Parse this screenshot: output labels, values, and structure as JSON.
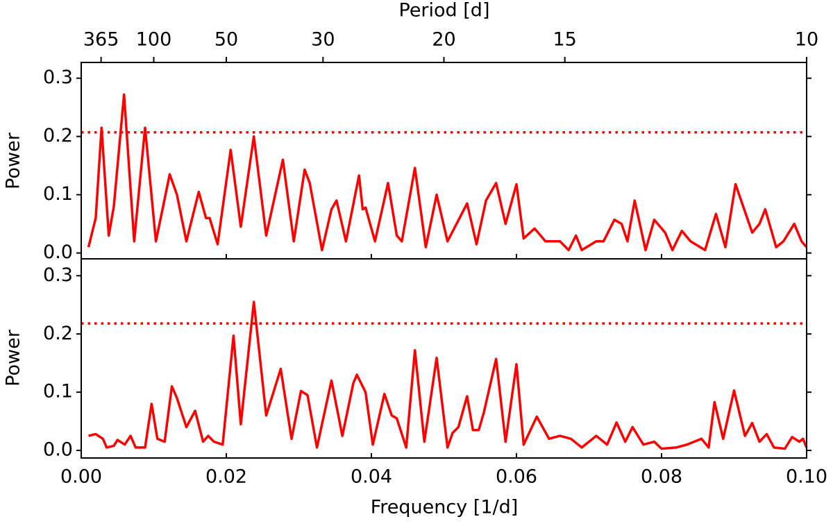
{
  "chart_data": [
    {
      "type": "line",
      "y_label": "Power",
      "x2_label": "Period [d]",
      "x2ticks": [
        365,
        100,
        50,
        30,
        20,
        15,
        10
      ],
      "xlim": [
        0,
        0.1
      ],
      "ylim": [
        -0.01,
        0.327
      ],
      "yticks": [
        {
          "value": 0,
          "label": "0.0"
        },
        {
          "value": 0.1,
          "label": "0.1"
        },
        {
          "value": 0.2,
          "label": "0.2"
        },
        {
          "value": 0.3,
          "label": "0.3"
        }
      ],
      "threshold": 0.207,
      "color": "#ff0000",
      "x": [
        0.001,
        0.002,
        0.0028,
        0.0038,
        0.0045,
        0.0059,
        0.0073,
        0.0088,
        0.0103,
        0.0122,
        0.0132,
        0.0145,
        0.0162,
        0.0172,
        0.0177,
        0.0188,
        0.0206,
        0.022,
        0.0238,
        0.0255,
        0.0278,
        0.0293,
        0.0308,
        0.0315,
        0.0332,
        0.0345,
        0.0352,
        0.0365,
        0.0383,
        0.0388,
        0.0392,
        0.0405,
        0.0423,
        0.0435,
        0.0442,
        0.046,
        0.0475,
        0.049,
        0.0505,
        0.0532,
        0.0545,
        0.0558,
        0.0572,
        0.0585,
        0.06,
        0.061,
        0.0625,
        0.064,
        0.066,
        0.0672,
        0.0682,
        0.069,
        0.071,
        0.072,
        0.0735,
        0.0745,
        0.0753,
        0.0763,
        0.0778,
        0.079,
        0.0805,
        0.0815,
        0.0828,
        0.084,
        0.086,
        0.0875,
        0.0888,
        0.0902,
        0.0925,
        0.0935,
        0.0943,
        0.0958,
        0.0968,
        0.0983,
        0.0993,
        0.1
      ],
      "values": [
        0.01,
        0.06,
        0.215,
        0.03,
        0.08,
        0.272,
        0.02,
        0.215,
        0.02,
        0.135,
        0.1,
        0.02,
        0.105,
        0.06,
        0.06,
        0.015,
        0.177,
        0.045,
        0.2,
        0.03,
        0.16,
        0.02,
        0.143,
        0.12,
        0.005,
        0.075,
        0.09,
        0.02,
        0.133,
        0.075,
        0.078,
        0.02,
        0.12,
        0.03,
        0.02,
        0.146,
        0.01,
        0.1,
        0.02,
        0.085,
        0.015,
        0.09,
        0.12,
        0.05,
        0.118,
        0.025,
        0.042,
        0.02,
        0.02,
        0.005,
        0.03,
        0.005,
        0.02,
        0.02,
        0.057,
        0.05,
        0.02,
        0.09,
        0.005,
        0.057,
        0.035,
        0.005,
        0.038,
        0.02,
        0.005,
        0.067,
        0.01,
        0.118,
        0.035,
        0.05,
        0.075,
        0.01,
        0.02,
        0.05,
        0.02,
        0.01
      ]
    },
    {
      "type": "line",
      "y_label": "Power",
      "x_label": "Frequency [1/d]",
      "xlim": [
        0,
        0.1
      ],
      "ylim": [
        -0.013,
        0.329
      ],
      "xticks": [
        {
          "value": 0,
          "label": "0.00"
        },
        {
          "value": 0.02,
          "label": "0.02"
        },
        {
          "value": 0.04,
          "label": "0.04"
        },
        {
          "value": 0.06,
          "label": "0.06"
        },
        {
          "value": 0.08,
          "label": "0.08"
        },
        {
          "value": 0.1,
          "label": "0.10"
        }
      ],
      "yticks": [
        {
          "value": 0,
          "label": "0.0"
        },
        {
          "value": 0.1,
          "label": "0.1"
        },
        {
          "value": 0.2,
          "label": "0.2"
        },
        {
          "value": 0.3,
          "label": "0.3"
        }
      ],
      "threshold": 0.218,
      "color": "#ff0000",
      "x": [
        0.001,
        0.002,
        0.003,
        0.0035,
        0.0045,
        0.005,
        0.006,
        0.0068,
        0.0075,
        0.0088,
        0.0097,
        0.0105,
        0.0115,
        0.0125,
        0.0132,
        0.0145,
        0.0157,
        0.0168,
        0.0175,
        0.0183,
        0.0195,
        0.021,
        0.022,
        0.0238,
        0.0255,
        0.0275,
        0.029,
        0.0303,
        0.0312,
        0.0325,
        0.0345,
        0.036,
        0.0375,
        0.038,
        0.0392,
        0.0402,
        0.0418,
        0.0428,
        0.0435,
        0.0448,
        0.046,
        0.0473,
        0.049,
        0.0505,
        0.0512,
        0.052,
        0.0532,
        0.054,
        0.0548,
        0.0555,
        0.0572,
        0.0585,
        0.06,
        0.061,
        0.0628,
        0.0645,
        0.066,
        0.0675,
        0.069,
        0.071,
        0.0725,
        0.0738,
        0.075,
        0.076,
        0.0775,
        0.079,
        0.08,
        0.082,
        0.0835,
        0.0855,
        0.0865,
        0.0873,
        0.0885,
        0.09,
        0.0915,
        0.0925,
        0.0935,
        0.0945,
        0.0955,
        0.097,
        0.098,
        0.099,
        0.0995,
        0.1
      ],
      "values": [
        0.025,
        0.028,
        0.02,
        0.005,
        0.008,
        0.018,
        0.01,
        0.025,
        0.005,
        0.005,
        0.08,
        0.02,
        0.015,
        0.11,
        0.09,
        0.04,
        0.068,
        0.015,
        0.025,
        0.015,
        0.01,
        0.197,
        0.045,
        0.255,
        0.06,
        0.14,
        0.02,
        0.102,
        0.095,
        0.005,
        0.12,
        0.025,
        0.115,
        0.13,
        0.1,
        0.01,
        0.097,
        0.06,
        0.055,
        0.005,
        0.172,
        0.015,
        0.159,
        0.005,
        0.03,
        0.04,
        0.093,
        0.035,
        0.035,
        0.065,
        0.157,
        0.015,
        0.148,
        0.01,
        0.058,
        0.02,
        0.025,
        0.02,
        0.005,
        0.025,
        0.01,
        0.048,
        0.015,
        0.04,
        0.01,
        0.015,
        0.003,
        0.005,
        0.01,
        0.02,
        0.005,
        0.083,
        0.02,
        0.103,
        0.025,
        0.047,
        0.015,
        0.028,
        0.005,
        0.003,
        0.023,
        0.015,
        0.02,
        0.005
      ]
    }
  ]
}
